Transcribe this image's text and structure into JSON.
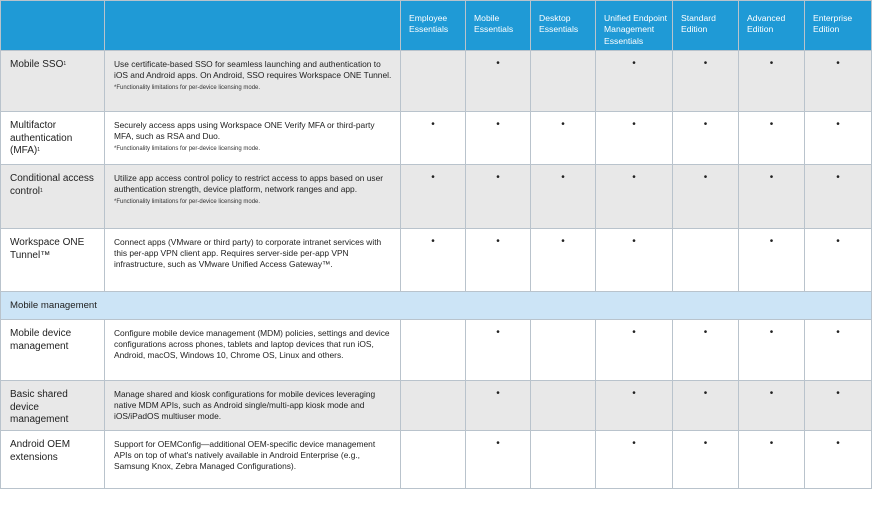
{
  "columns": [
    "Employee Essentials",
    "Mobile Essentials",
    "Desktop Essentials",
    "Unified Endpoint Management Essentials",
    "Standard Edition",
    "Advanced Edition",
    "Enterprise Edition"
  ],
  "check_mark": "•",
  "section_mobile": "Mobile management",
  "rows": [
    {
      "feature": "Mobile SSO",
      "sup": "1",
      "description": "Use certificate-based SSO for seamless launching and authentication to iOS and Android apps. On Android, SSO requires Workspace ONE Tunnel.",
      "note": "*Functionality limitations for per-device licensing mode.",
      "checks": [
        false,
        true,
        false,
        true,
        true,
        true,
        true
      ]
    },
    {
      "feature": "Multifactor authentication (MFA)",
      "sup": "1",
      "description": "Securely access apps using Workspace ONE Verify MFA or third-party MFA, such as RSA and Duo.",
      "note": "*Functionality limitations for per-device licensing mode.",
      "checks": [
        true,
        true,
        true,
        true,
        true,
        true,
        true
      ]
    },
    {
      "feature": "Conditional access control",
      "sup": "1",
      "description": "Utilize app access control policy to restrict access to apps based on user authentication strength, device platform, network ranges and app.",
      "note": "*Functionality limitations for per-device licensing mode.",
      "checks": [
        true,
        true,
        true,
        true,
        true,
        true,
        true
      ]
    },
    {
      "feature": "Workspace ONE Tunnel™",
      "sup": "",
      "description": "Connect apps (VMware or third party) to corporate intranet services with this per-app VPN client app. Requires server-side per-app VPN infrastructure, such as VMware Unified Access Gateway™.",
      "note": "",
      "checks": [
        true,
        true,
        true,
        true,
        false,
        true,
        true
      ]
    },
    {
      "feature": "Mobile device management",
      "sup": "",
      "description": "Configure mobile device management (MDM) policies, settings and device configurations across phones, tablets and laptop devices that run iOS, Android, macOS, Windows 10, Chrome OS, Linux and others.",
      "note": "",
      "checks": [
        false,
        true,
        false,
        true,
        true,
        true,
        true
      ]
    },
    {
      "feature": "Basic shared device management",
      "sup": "",
      "description": "Manage shared and kiosk configurations for mobile devices leveraging native MDM APIs, such as Android single/multi-app kiosk mode and iOS/iPadOS multiuser mode.",
      "note": "",
      "checks": [
        false,
        true,
        false,
        true,
        true,
        true,
        true
      ]
    },
    {
      "feature": "Android OEM extensions",
      "sup": "",
      "description": "Support for OEMConfig—additional OEM-specific device management APIs on top of what's natively available in Android Enterprise (e.g., Samsung Knox, Zebra Managed Configurations).",
      "note": "",
      "checks": [
        false,
        true,
        false,
        true,
        true,
        true,
        true
      ]
    }
  ]
}
